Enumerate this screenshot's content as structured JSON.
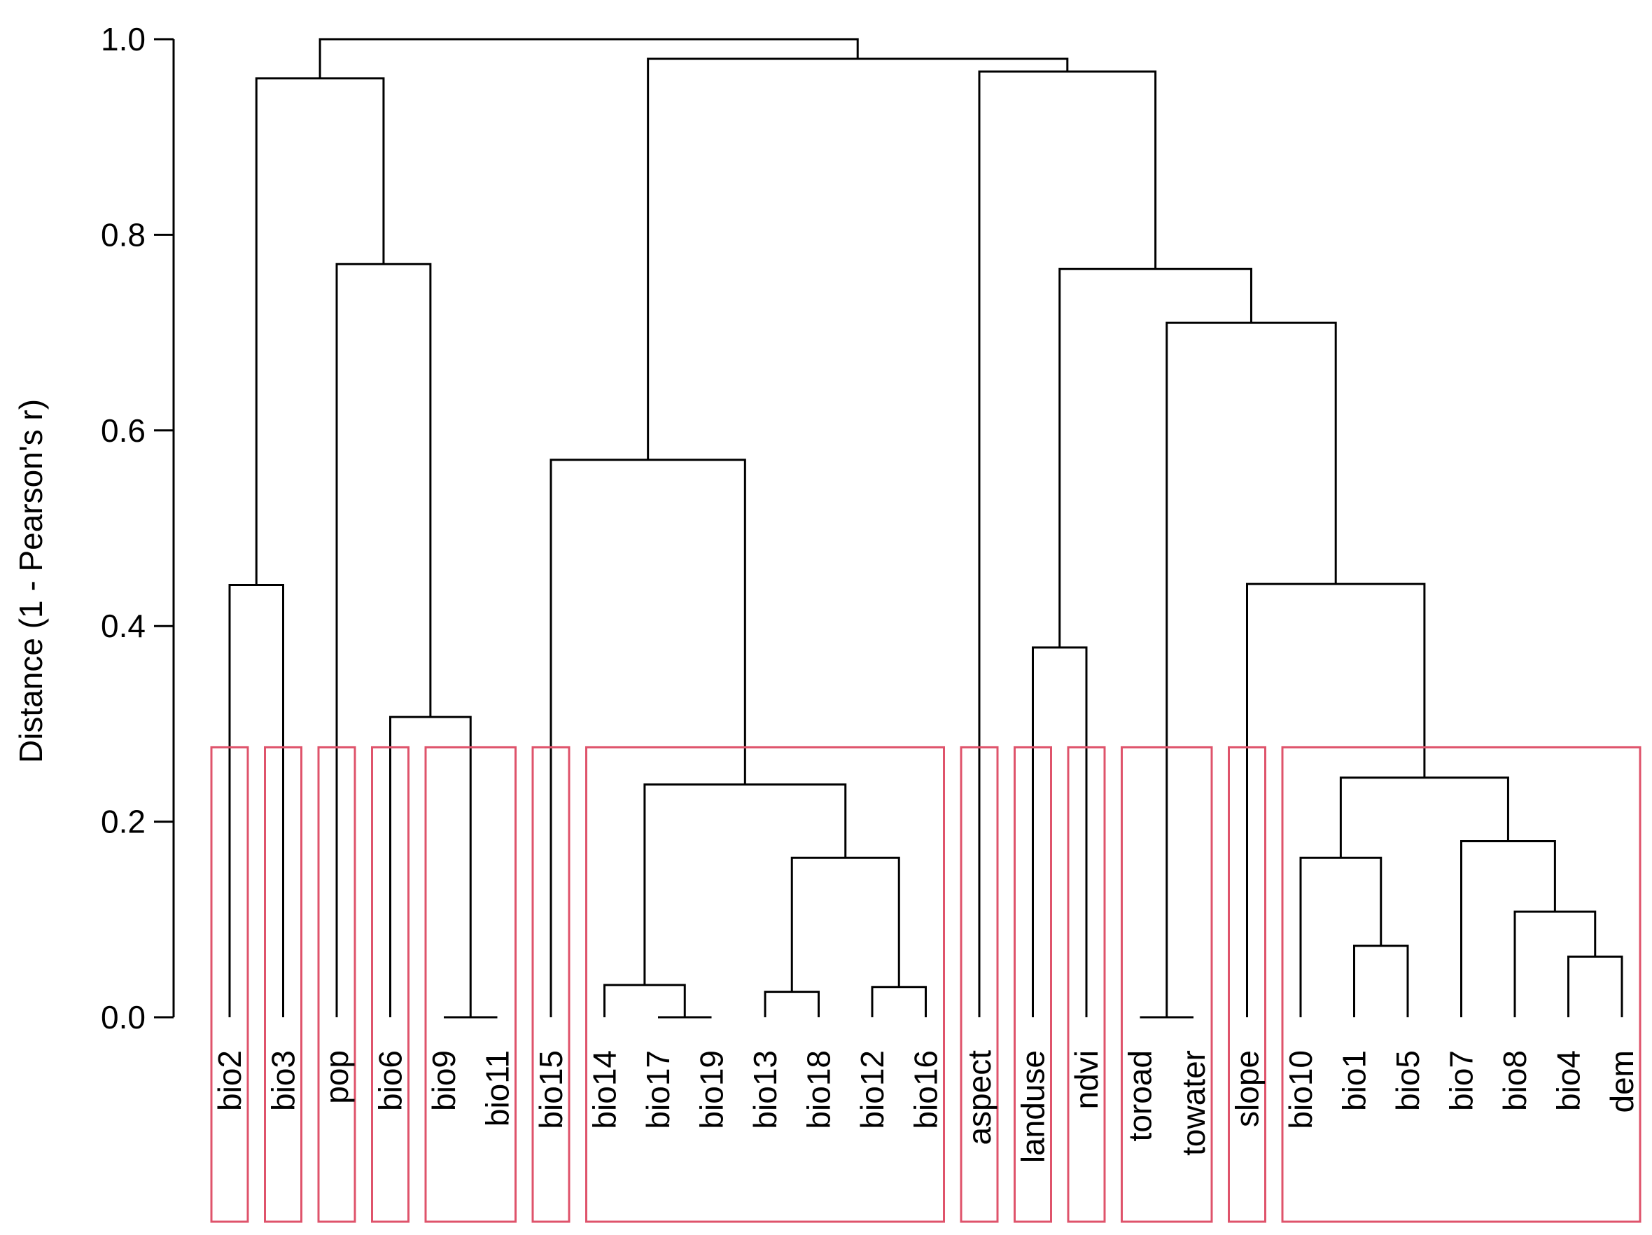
{
  "chart_data": {
    "type": "dendrogram",
    "ylabel": "Distance (1 - Pearson's r)",
    "ylim": [
      0,
      1.0
    ],
    "yticks": [
      0.0,
      0.2,
      0.4,
      0.6,
      0.8,
      1.0
    ],
    "ytick_labels": [
      "0.0",
      "0.2",
      "0.4",
      "0.6",
      "0.8",
      "1.0"
    ],
    "cut_height": 0.276,
    "leaves": [
      "bio2",
      "bio3",
      "pop",
      "bio6",
      "bio9",
      "bio11",
      "bio15",
      "bio14",
      "bio17",
      "bio19",
      "bio13",
      "bio18",
      "bio12",
      "bio16",
      "aspect",
      "landuse",
      "ndvi",
      "toroad",
      "towater",
      "slope",
      "bio10",
      "bio1",
      "bio5",
      "bio7",
      "bio8",
      "bio4",
      "dem"
    ],
    "merges": [
      {
        "a": "bio9",
        "b": "bio11",
        "height": 0.0
      },
      {
        "a": "toroad",
        "b": "towater",
        "height": 0.0
      },
      {
        "a": "bio17",
        "b": "bio19",
        "height": 0.0
      },
      {
        "a": "bio13",
        "b": "bio18",
        "height": 0.026
      },
      {
        "a": "bio12",
        "b": "bio16",
        "height": 0.031
      },
      {
        "a": "bio14",
        "b": "(bio17,bio19)",
        "height": 0.033
      },
      {
        "a": "bio4",
        "b": "dem",
        "height": 0.062
      },
      {
        "a": "bio1",
        "b": "bio5",
        "height": 0.073
      },
      {
        "a": "bio8",
        "b": "(bio4,dem)",
        "height": 0.108
      },
      {
        "a": "(bio13,bio18)",
        "b": "(bio12,bio16)",
        "height": 0.163
      },
      {
        "a": "bio10",
        "b": "(bio1,bio5)",
        "height": 0.163
      },
      {
        "a": "bio7",
        "b": "(bio8,bio4,dem)",
        "height": 0.18
      },
      {
        "a": "(bio14,bio17,bio19)",
        "b": "(bio13,bio18,bio12,bio16)",
        "height": 0.238
      },
      {
        "a": "(bio10,bio1,bio5)",
        "b": "(bio7,bio8,bio4,dem)",
        "height": 0.245
      },
      {
        "a": "bio6",
        "b": "(bio9,bio11)",
        "height": 0.307
      },
      {
        "a": "landuse",
        "b": "ndvi",
        "height": 0.378
      },
      {
        "a": "bio2",
        "b": "bio3",
        "height": 0.442
      },
      {
        "a": "slope",
        "b": "(bio10..dem)",
        "height": 0.443
      },
      {
        "a": "bio15",
        "b": "(bio14..bio16)",
        "height": 0.57
      },
      {
        "a": "(toroad,towater)",
        "b": "(slope..dem)",
        "height": 0.71
      },
      {
        "a": "(landuse,ndvi)",
        "b": "(toroad..dem)",
        "height": 0.765
      },
      {
        "a": "pop",
        "b": "(bio6,bio9,bio11)",
        "height": 0.77
      },
      {
        "a": "(bio2,bio3)",
        "b": "(pop..bio11)",
        "height": 0.96
      },
      {
        "a": "aspect",
        "b": "(landuse..dem)",
        "height": 0.967
      },
      {
        "a": "(bio15..bio16)",
        "b": "(aspect..dem)",
        "height": 0.98
      },
      {
        "a": "(bio2..bio11)",
        "b": "(bio15..dem)",
        "height": 1.0
      }
    ],
    "clusters": [
      [
        "bio2"
      ],
      [
        "bio3"
      ],
      [
        "pop"
      ],
      [
        "bio6"
      ],
      [
        "bio9",
        "bio11"
      ],
      [
        "bio15"
      ],
      [
        "bio14",
        "bio17",
        "bio19",
        "bio13",
        "bio18",
        "bio12",
        "bio16"
      ],
      [
        "aspect"
      ],
      [
        "landuse"
      ],
      [
        "ndvi"
      ],
      [
        "toroad",
        "towater"
      ],
      [
        "slope"
      ],
      [
        "bio10",
        "bio1",
        "bio5",
        "bio7",
        "bio8",
        "bio4",
        "dem"
      ]
    ],
    "colors": {
      "tree": "#000000",
      "cluster_box": "#DF536B"
    }
  }
}
